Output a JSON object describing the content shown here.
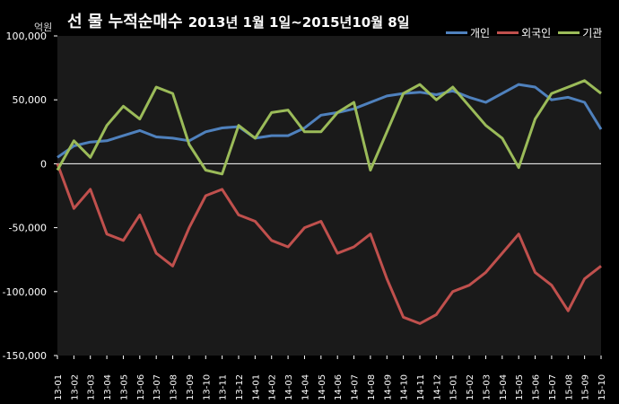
{
  "chart_data": {
    "type": "line",
    "title": "선 물 누적순매수",
    "subtitle": "2013년 1월 1일~2015년10월 8일",
    "ylabel": "억원",
    "ylim": [
      -150000,
      100000
    ],
    "yticks": [
      {
        "value": 100000,
        "label": "100,000"
      },
      {
        "value": 50000,
        "label": "50,000"
      },
      {
        "value": 0,
        "label": "0"
      },
      {
        "value": -50000,
        "label": "-50,000"
      },
      {
        "value": -100000,
        "label": "-100,000"
      },
      {
        "value": -150000,
        "label": "-150,000"
      }
    ],
    "categories": [
      "13-01",
      "13-02",
      "13-03",
      "13-04",
      "13-05",
      "13-06",
      "13-07",
      "13-08",
      "13-09",
      "13-10",
      "13-11",
      "13-12",
      "14-01",
      "14-02",
      "14-03",
      "14-04",
      "14-05",
      "14-06",
      "14-07",
      "14-08",
      "14-09",
      "14-10",
      "14-11",
      "14-12",
      "15-01",
      "15-02",
      "15-03",
      "15-04",
      "15-05",
      "15-06",
      "15-07",
      "15-08",
      "15-09",
      "15-10"
    ],
    "grid": false,
    "legend_position": "top-right",
    "series": [
      {
        "name": "개인",
        "color": "#4f81bd",
        "values": [
          5000,
          14000,
          17000,
          18000,
          22000,
          26000,
          21000,
          20000,
          18000,
          25000,
          28000,
          29000,
          20000,
          22000,
          22000,
          28000,
          38000,
          40000,
          43000,
          48000,
          53000,
          55000,
          56000,
          54000,
          57000,
          52000,
          48000,
          55000,
          62000,
          60000,
          50000,
          52000,
          48000,
          27000
        ]
      },
      {
        "name": "외국인",
        "color": "#c0504d",
        "values": [
          0,
          -35000,
          -20000,
          -55000,
          -60000,
          -40000,
          -70000,
          -80000,
          -50000,
          -25000,
          -20000,
          -40000,
          -45000,
          -60000,
          -65000,
          -50000,
          -45000,
          -70000,
          -65000,
          -55000,
          -90000,
          -120000,
          -125000,
          -118000,
          -100000,
          -95000,
          -85000,
          -70000,
          -55000,
          -85000,
          -95000,
          -115000,
          -90000,
          -80000
        ]
      },
      {
        "name": "기관",
        "color": "#9bbb59",
        "values": [
          -5000,
          18000,
          5000,
          30000,
          45000,
          35000,
          60000,
          55000,
          15000,
          -5000,
          -8000,
          30000,
          20000,
          40000,
          42000,
          25000,
          25000,
          40000,
          48000,
          -5000,
          25000,
          55000,
          62000,
          50000,
          60000,
          45000,
          30000,
          20000,
          -3000,
          35000,
          55000,
          60000,
          65000,
          55000
        ]
      }
    ]
  }
}
